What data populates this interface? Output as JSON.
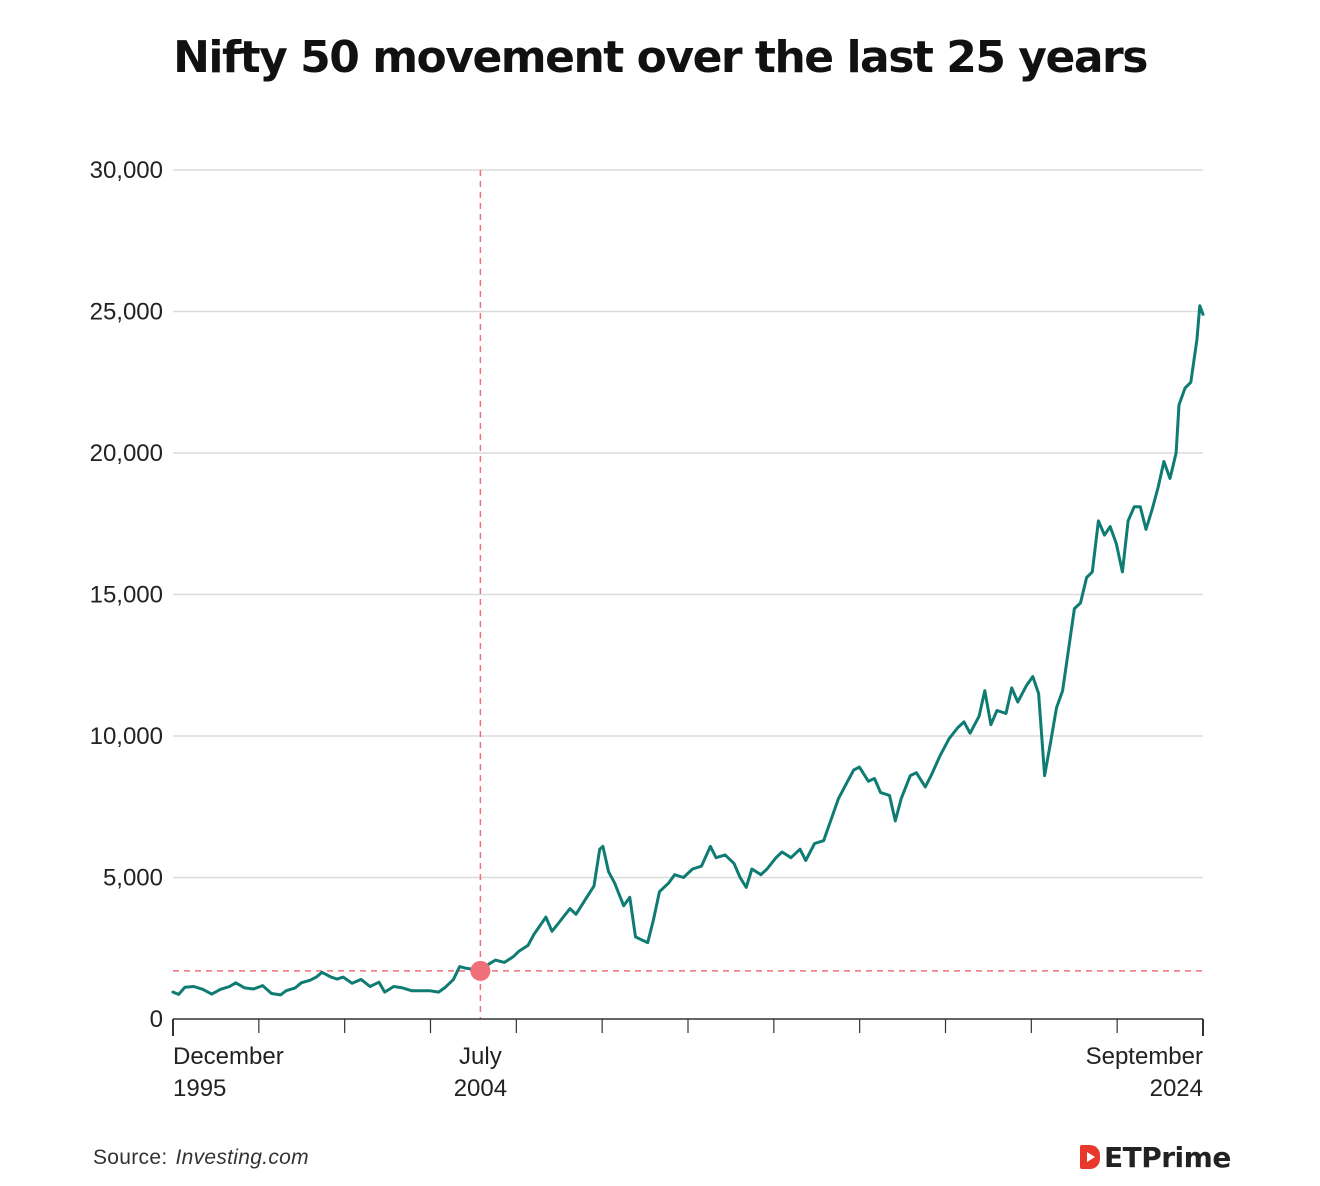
{
  "chart_data": {
    "type": "line",
    "title": "Nifty 50 movement over the last 25 years",
    "xlabel": "",
    "ylabel": "",
    "ylim": [
      0,
      30000
    ],
    "yticks": [
      0,
      5000,
      10000,
      15000,
      20000,
      25000,
      30000
    ],
    "ytick_labels": [
      "0",
      "5,000",
      "10,000",
      "15,000",
      "20,000",
      "25,000",
      "30,000"
    ],
    "x_range": [
      1995.92,
      2024.67
    ],
    "x_labels": [
      {
        "x": 1995.92,
        "line1": "December",
        "line2": "1995",
        "anchor": "start"
      },
      {
        "x": 2004.5,
        "line1": "July",
        "line2": "2004",
        "anchor": "middle"
      },
      {
        "x": 2024.67,
        "line1": "September",
        "line2": "2024",
        "anchor": "end"
      }
    ],
    "highlight": {
      "x": 2004.5,
      "y": 1700
    },
    "colors": {
      "line": "#0e7c72",
      "highlight": "#f0707a",
      "grid": "#dcdcdc",
      "axis": "#333333"
    },
    "series": [
      {
        "name": "Nifty 50",
        "points": [
          [
            1995.92,
            950
          ],
          [
            1996.08,
            870
          ],
          [
            1996.25,
            1120
          ],
          [
            1996.5,
            1150
          ],
          [
            1996.75,
            1050
          ],
          [
            1997.0,
            880
          ],
          [
            1997.25,
            1050
          ],
          [
            1997.5,
            1150
          ],
          [
            1997.67,
            1280
          ],
          [
            1997.92,
            1100
          ],
          [
            1998.17,
            1060
          ],
          [
            1998.42,
            1180
          ],
          [
            1998.67,
            900
          ],
          [
            1998.92,
            850
          ],
          [
            1999.08,
            1000
          ],
          [
            1999.33,
            1100
          ],
          [
            1999.5,
            1280
          ],
          [
            1999.75,
            1370
          ],
          [
            1999.92,
            1480
          ],
          [
            2000.08,
            1650
          ],
          [
            2000.33,
            1480
          ],
          [
            2000.5,
            1410
          ],
          [
            2000.67,
            1480
          ],
          [
            2000.92,
            1260
          ],
          [
            2001.17,
            1400
          ],
          [
            2001.42,
            1150
          ],
          [
            2001.67,
            1300
          ],
          [
            2001.83,
            950
          ],
          [
            2002.08,
            1150
          ],
          [
            2002.33,
            1100
          ],
          [
            2002.58,
            1000
          ],
          [
            2002.83,
            1000
          ],
          [
            2003.08,
            1000
          ],
          [
            2003.33,
            950
          ],
          [
            2003.5,
            1100
          ],
          [
            2003.75,
            1400
          ],
          [
            2003.92,
            1850
          ],
          [
            2004.08,
            1800
          ],
          [
            2004.33,
            1750
          ],
          [
            2004.5,
            1700
          ],
          [
            2004.75,
            1950
          ],
          [
            2004.92,
            2080
          ],
          [
            2005.17,
            2000
          ],
          [
            2005.42,
            2200
          ],
          [
            2005.58,
            2400
          ],
          [
            2005.83,
            2600
          ],
          [
            2006.0,
            3000
          ],
          [
            2006.33,
            3600
          ],
          [
            2006.5,
            3100
          ],
          [
            2006.75,
            3500
          ],
          [
            2007.0,
            3900
          ],
          [
            2007.17,
            3700
          ],
          [
            2007.42,
            4200
          ],
          [
            2007.67,
            4700
          ],
          [
            2007.83,
            6000
          ],
          [
            2007.92,
            6100
          ],
          [
            2008.08,
            5200
          ],
          [
            2008.25,
            4800
          ],
          [
            2008.5,
            4000
          ],
          [
            2008.67,
            4300
          ],
          [
            2008.83,
            2900
          ],
          [
            2009.0,
            2800
          ],
          [
            2009.17,
            2700
          ],
          [
            2009.33,
            3500
          ],
          [
            2009.5,
            4500
          ],
          [
            2009.75,
            4800
          ],
          [
            2009.92,
            5100
          ],
          [
            2010.17,
            5000
          ],
          [
            2010.42,
            5300
          ],
          [
            2010.67,
            5400
          ],
          [
            2010.92,
            6100
          ],
          [
            2011.08,
            5700
          ],
          [
            2011.33,
            5800
          ],
          [
            2011.58,
            5500
          ],
          [
            2011.75,
            5000
          ],
          [
            2011.92,
            4650
          ],
          [
            2012.08,
            5300
          ],
          [
            2012.33,
            5100
          ],
          [
            2012.5,
            5300
          ],
          [
            2012.75,
            5700
          ],
          [
            2012.92,
            5900
          ],
          [
            2013.17,
            5700
          ],
          [
            2013.42,
            6000
          ],
          [
            2013.58,
            5600
          ],
          [
            2013.83,
            6200
          ],
          [
            2014.08,
            6300
          ],
          [
            2014.33,
            7200
          ],
          [
            2014.5,
            7800
          ],
          [
            2014.75,
            8400
          ],
          [
            2014.92,
            8800
          ],
          [
            2015.08,
            8900
          ],
          [
            2015.33,
            8400
          ],
          [
            2015.5,
            8500
          ],
          [
            2015.67,
            8000
          ],
          [
            2015.92,
            7900
          ],
          [
            2016.08,
            7000
          ],
          [
            2016.25,
            7800
          ],
          [
            2016.5,
            8600
          ],
          [
            2016.67,
            8700
          ],
          [
            2016.92,
            8200
          ],
          [
            2017.08,
            8600
          ],
          [
            2017.33,
            9300
          ],
          [
            2017.58,
            9900
          ],
          [
            2017.83,
            10300
          ],
          [
            2018.0,
            10500
          ],
          [
            2018.17,
            10100
          ],
          [
            2018.42,
            10700
          ],
          [
            2018.58,
            11600
          ],
          [
            2018.75,
            10400
          ],
          [
            2018.92,
            10900
          ],
          [
            2019.17,
            10800
          ],
          [
            2019.33,
            11700
          ],
          [
            2019.5,
            11200
          ],
          [
            2019.75,
            11800
          ],
          [
            2019.92,
            12100
          ],
          [
            2020.08,
            11500
          ],
          [
            2020.25,
            8600
          ],
          [
            2020.42,
            9800
          ],
          [
            2020.58,
            11000
          ],
          [
            2020.75,
            11600
          ],
          [
            2020.92,
            13100
          ],
          [
            2021.08,
            14500
          ],
          [
            2021.25,
            14700
          ],
          [
            2021.42,
            15600
          ],
          [
            2021.58,
            15800
          ],
          [
            2021.75,
            17600
          ],
          [
            2021.92,
            17100
          ],
          [
            2022.08,
            17400
          ],
          [
            2022.25,
            16800
          ],
          [
            2022.42,
            15800
          ],
          [
            2022.58,
            17600
          ],
          [
            2022.75,
            18100
          ],
          [
            2022.92,
            18100
          ],
          [
            2023.08,
            17300
          ],
          [
            2023.25,
            18000
          ],
          [
            2023.42,
            18800
          ],
          [
            2023.58,
            19700
          ],
          [
            2023.75,
            19100
          ],
          [
            2023.92,
            20000
          ],
          [
            2024.0,
            21700
          ],
          [
            2024.17,
            22300
          ],
          [
            2024.33,
            22500
          ],
          [
            2024.5,
            24000
          ],
          [
            2024.58,
            25200
          ],
          [
            2024.67,
            24900
          ]
        ]
      }
    ]
  },
  "source": {
    "label": "Source:",
    "site": "Investing.com"
  },
  "brand": {
    "name": "ETPrime"
  }
}
